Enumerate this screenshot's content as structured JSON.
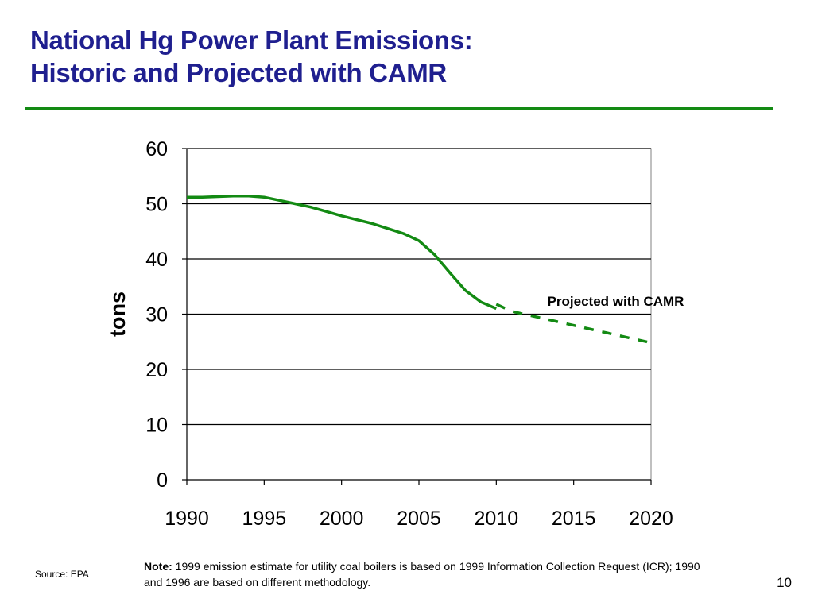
{
  "slide": {
    "title_line1": "National Hg Power Plant Emissions:",
    "title_line2": "Historic and Projected with CAMR",
    "accent_color": "#138a13",
    "title_color": "#1f1f8f"
  },
  "chart_data": {
    "type": "line",
    "title": "",
    "xlabel": "",
    "ylabel": "tons",
    "xlim": [
      1990,
      2020
    ],
    "ylim": [
      0,
      60
    ],
    "x_ticks": [
      "1990",
      "1995",
      "2000",
      "2005",
      "2010",
      "2015",
      "2020"
    ],
    "y_ticks": [
      "0",
      "10",
      "20",
      "30",
      "40",
      "50",
      "60"
    ],
    "grid": "horizontal",
    "series": [
      {
        "style": "solid",
        "color": "#138a13",
        "points": [
          [
            1990,
            51.2
          ],
          [
            1991,
            51.2
          ],
          [
            1992,
            51.3
          ],
          [
            1993,
            51.4
          ],
          [
            1994,
            51.4
          ],
          [
            1995,
            51.2
          ],
          [
            1996,
            50.6
          ],
          [
            1997,
            50.0
          ],
          [
            1998,
            49.4
          ],
          [
            1999,
            48.6
          ],
          [
            2000,
            47.8
          ],
          [
            2001,
            47.1
          ],
          [
            2002,
            46.4
          ],
          [
            2003,
            45.5
          ],
          [
            2004,
            44.6
          ],
          [
            2005,
            43.3
          ],
          [
            2006,
            40.8
          ],
          [
            2007,
            37.5
          ],
          [
            2008,
            34.3
          ],
          [
            2009,
            32.2
          ],
          [
            2010,
            31.0
          ]
        ]
      },
      {
        "name": "Projected with CAMR",
        "style": "dashed",
        "color": "#138a13",
        "points": [
          [
            2010,
            31.8
          ],
          [
            2011,
            30.5
          ],
          [
            2020,
            24.8
          ]
        ]
      }
    ],
    "annotations": [
      {
        "text": "Projected with CAMR",
        "x": 2013.3,
        "y": 31.5
      }
    ]
  },
  "footer": {
    "note_label": "Note:",
    "note_text": " 1999 emission estimate for utility coal boilers is based on 1999 Information Collection Request (ICR); 1990 and 1996 are based on different methodology.",
    "source": "Source: EPA",
    "page_number": "10"
  }
}
